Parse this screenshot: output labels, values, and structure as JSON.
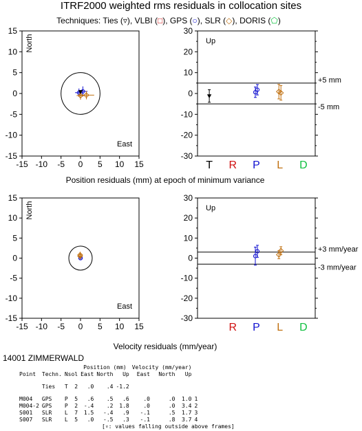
{
  "title": "ITRF2000 weighted rms residuals in collocation sites",
  "techniques_line": {
    "prefix": "Techniques: ",
    "items": [
      {
        "text": "Ties (",
        "symbol": "▿",
        "color": "#000000",
        "suffix": "), "
      },
      {
        "text": "VLBI (",
        "symbol": "□",
        "color": "#d01010",
        "suffix": "), "
      },
      {
        "text": "GPS (",
        "symbol": "○",
        "color": "#1010d0",
        "suffix": "), "
      },
      {
        "text": "SLR (",
        "symbol": "◇",
        "color": "#c07010",
        "suffix": "), "
      },
      {
        "text": "DORIS (",
        "symbol": "⬠",
        "color": "#10c040",
        "suffix": ")"
      }
    ]
  },
  "colors": {
    "ties": "#000000",
    "vlbi": "#d01010",
    "gps": "#1010d0",
    "slr": "#c07010",
    "doris": "#10c040"
  },
  "chart_data": [
    {
      "type": "scatter",
      "name": "position-horizontal",
      "corner_label_north": "North",
      "corner_label_east": "East",
      "xlim": [
        -15,
        15
      ],
      "ylim": [
        -15,
        15
      ],
      "xticks": [
        -15,
        -10,
        -5,
        0,
        5,
        10,
        15
      ],
      "yticks": [
        -15,
        -10,
        -5,
        0,
        5,
        10,
        15
      ],
      "circle_radius": 5,
      "points": [
        {
          "tech": "gps",
          "east": 0.6,
          "north": 0.5,
          "ex": 1.2,
          "ey": 1.2
        },
        {
          "tech": "gps",
          "east": -0.4,
          "north": 0.2,
          "ex": 1.0,
          "ey": 1.0
        },
        {
          "tech": "slr",
          "east": 1.5,
          "north": -0.4,
          "ex": 2.0,
          "ey": 1.0
        },
        {
          "tech": "slr",
          "east": 0.0,
          "north": -0.5,
          "ex": 1.0,
          "ey": 1.0
        },
        {
          "tech": "ties",
          "east": 0.0,
          "north": 0.4,
          "ex": 0,
          "ey": 0
        }
      ]
    },
    {
      "type": "scatter",
      "name": "position-up",
      "corner_label": "Up",
      "ylim": [
        -30,
        30
      ],
      "yticks": [
        -30,
        -25,
        -20,
        -15,
        -10,
        -5,
        0,
        5,
        10,
        15,
        20,
        25,
        30
      ],
      "bounds": [
        5,
        -5
      ],
      "bound_labels": [
        "+5 mm",
        "-5 mm"
      ],
      "categories": [
        "T",
        "R",
        "P",
        "L",
        "D"
      ],
      "category_colors": [
        "#000000",
        "#d01010",
        "#1010d0",
        "#c07010",
        "#10c040"
      ],
      "points": [
        {
          "cat": 0,
          "tech": "ties",
          "value": -1.2,
          "err": 3
        },
        {
          "cat": 2,
          "tech": "gps",
          "value": 0.6,
          "err": 2.5
        },
        {
          "cat": 2,
          "tech": "gps",
          "value": 1.8,
          "err": 2.5
        },
        {
          "cat": 3,
          "tech": "slr",
          "value": 0.9,
          "err": 3.5
        },
        {
          "cat": 3,
          "tech": "slr",
          "value": 0.3,
          "err": 3.5
        }
      ]
    },
    {
      "type": "scatter",
      "name": "velocity-horizontal",
      "corner_label_north": "North",
      "corner_label_east": "East",
      "xlim": [
        -15,
        15
      ],
      "ylim": [
        -15,
        15
      ],
      "xticks": [
        -15,
        -10,
        -5,
        0,
        5,
        10,
        15
      ],
      "yticks": [
        -15,
        -10,
        -5,
        0,
        5,
        10,
        15
      ],
      "circle_radius": 3,
      "points": [
        {
          "tech": "gps",
          "east": 0.0,
          "north": 0.0,
          "ex": 0.3,
          "ey": 0.3
        },
        {
          "tech": "gps",
          "east": 0.0,
          "north": 0.0,
          "ex": 0.3,
          "ey": 0.3
        },
        {
          "tech": "slr",
          "east": -0.1,
          "north": 0.5,
          "ex": 0.4,
          "ey": 0.8
        },
        {
          "tech": "slr",
          "east": -0.1,
          "north": 0.8,
          "ex": 0.4,
          "ey": 0.8
        }
      ]
    },
    {
      "type": "scatter",
      "name": "velocity-up",
      "corner_label": "Up",
      "ylim": [
        -30,
        30
      ],
      "yticks": [
        -30,
        -25,
        -20,
        -15,
        -10,
        -5,
        0,
        5,
        10,
        15,
        20,
        25,
        30
      ],
      "bounds": [
        3,
        -3
      ],
      "bound_labels": [
        "+3 mm/year",
        "-3 mm/year"
      ],
      "categories": [
        "",
        "R",
        "P",
        "L",
        "D"
      ],
      "category_colors": [
        "#000000",
        "#d01010",
        "#1010d0",
        "#c07010",
        "#10c040"
      ],
      "points": [
        {
          "cat": 2,
          "tech": "gps",
          "value": 1.0,
          "err": 4.5
        },
        {
          "cat": 2,
          "tech": "gps",
          "value": 3.4,
          "err": 3.0
        },
        {
          "cat": 3,
          "tech": "slr",
          "value": 1.7,
          "err": 2.0
        },
        {
          "cat": 3,
          "tech": "slr",
          "value": 3.7,
          "err": 2.0
        }
      ]
    }
  ],
  "position_caption": "Position residuals (mm) at epoch of minimum variance",
  "velocity_caption": "Velocity residuals (mm/year)",
  "site": {
    "name": "14001 ZIMMERWALD"
  },
  "table": {
    "group_headers": [
      "Position (mm)",
      "Velocity (mm/year)"
    ],
    "columns": [
      "Point",
      "Techn.",
      "Nsol",
      "East",
      "North",
      "Up",
      "East",
      "North",
      "Up"
    ],
    "ties_row": [
      "",
      "Ties",
      "T",
      "2",
      ".0",
      ".4",
      "-1.2",
      "",
      "",
      "",
      ""
    ],
    "rows": [
      [
        "M004",
        "GPS",
        "P",
        "5",
        ".6",
        ".5",
        ".6",
        ".0",
        ".0",
        "1.0",
        "1"
      ],
      [
        "M004-2",
        "GPS",
        "P",
        "2",
        "-.4",
        ".2",
        "1.8",
        ".0",
        ".0",
        "3.4",
        "2"
      ],
      [
        "S001",
        "SLR",
        "L",
        "7",
        "1.5",
        "-.4",
        ".9",
        "-.1",
        ".5",
        "1.7",
        "3"
      ],
      [
        "S007",
        "SLR",
        "L",
        "5",
        ".0",
        "-.5",
        ".3",
        "-.1",
        ".8",
        "3.7",
        "4"
      ]
    ],
    "footnote": "[▿: values falling outside above frames]"
  }
}
